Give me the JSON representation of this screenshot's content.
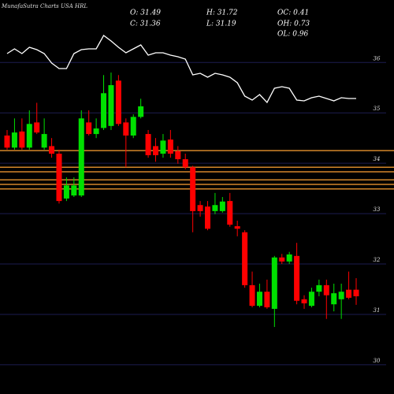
{
  "chart_data": {
    "type": "candlestick",
    "title": "MunafaSutra Charts USA HRL",
    "ohlc_labels": [
      "O: 31.49",
      "H: 31.72",
      "OC: 0.41",
      "C: 31.36",
      "L: 31.19",
      "OH: 0.73",
      "OL: 0.96"
    ],
    "up_color": "#00e000",
    "down_color": "#ff0000",
    "level_color": "#d4862a",
    "line_color": "#ffffff",
    "grid_color": "#1c1c50",
    "grid": true,
    "ylim": [
      29.42,
      37.24
    ],
    "yticks": [
      30,
      31,
      32,
      33,
      34,
      35,
      36
    ],
    "y2lim": [
      0,
      100
    ],
    "levels": [
      34.25,
      33.92,
      33.83,
      33.67,
      33.58,
      33.49
    ],
    "open": [
      34.55,
      34.31,
      34.63,
      34.31,
      34.81,
      34.31,
      34.34,
      34.19,
      33.3,
      33.36,
      33.36,
      34.81,
      34.58,
      34.7,
      34.74,
      35.64,
      34.81,
      34.55,
      34.92,
      34.58,
      34.34,
      34.19,
      34.47,
      34.24,
      34.08,
      33.92,
      33.17,
      33.14,
      33.05,
      33.05,
      33.25,
      32.75,
      32.63,
      31.58,
      31.17,
      31.45,
      31.11,
      32.13,
      32.05,
      32.16,
      31.3,
      31.17,
      31.45,
      31.58,
      31.2,
      31.3,
      31.49,
      31.49
    ],
    "high": [
      34.66,
      34.89,
      34.89,
      35.05,
      35.2,
      34.89,
      34.5,
      34.27,
      33.72,
      33.72,
      35.05,
      35.05,
      34.89,
      35.75,
      35.8,
      35.75,
      34.89,
      34.97,
      35.28,
      34.66,
      34.5,
      34.58,
      34.66,
      34.34,
      34.19,
      33.95,
      33.25,
      33.25,
      33.41,
      33.33,
      33.41,
      32.86,
      32.67,
      31.85,
      31.61,
      31.69,
      32.16,
      32.2,
      32.24,
      32.42,
      31.38,
      31.53,
      31.69,
      31.69,
      31.61,
      31.61,
      31.85,
      31.72
    ],
    "low": [
      34.27,
      34.27,
      34.27,
      34.27,
      34.58,
      34.27,
      34.11,
      33.2,
      33.25,
      33.33,
      33.33,
      34.55,
      34.5,
      34.66,
      34.66,
      34.74,
      33.92,
      34.5,
      34.89,
      34.11,
      34.03,
      34.11,
      34.11,
      33.99,
      33.88,
      32.63,
      32.94,
      32.67,
      32.99,
      33.02,
      32.74,
      32.55,
      31.53,
      31.14,
      31.14,
      31.11,
      30.75,
      32.0,
      32.0,
      31.2,
      31.11,
      31.14,
      31.36,
      30.91,
      31.06,
      30.91,
      31.3,
      31.19
    ],
    "close": [
      34.31,
      34.61,
      34.31,
      34.78,
      34.61,
      34.58,
      34.19,
      33.25,
      33.56,
      33.56,
      34.89,
      34.58,
      34.69,
      35.39,
      35.55,
      34.78,
      34.55,
      34.92,
      35.13,
      34.16,
      34.16,
      34.45,
      34.19,
      34.08,
      33.92,
      33.05,
      33.05,
      32.7,
      33.17,
      33.24,
      32.78,
      32.7,
      31.58,
      31.17,
      31.45,
      31.14,
      32.13,
      32.05,
      32.19,
      31.27,
      31.22,
      31.45,
      31.58,
      31.38,
      31.42,
      31.45,
      31.33,
      31.36
    ],
    "line": {
      "axis": "y2",
      "values": [
        66,
        69,
        66,
        70,
        68.5,
        66,
        60,
        56.5,
        56.5,
        66,
        68.5,
        69,
        69,
        77.5,
        74,
        70,
        66.5,
        69,
        71.5,
        65,
        66.5,
        66.5,
        65,
        64,
        62.5,
        52.5,
        53.5,
        51,
        53.5,
        52.5,
        51,
        47.5,
        39,
        36.5,
        40,
        35,
        44,
        45,
        44,
        36.5,
        36,
        38,
        39,
        37.5,
        36,
        38,
        37.5,
        37.5
      ]
    }
  }
}
